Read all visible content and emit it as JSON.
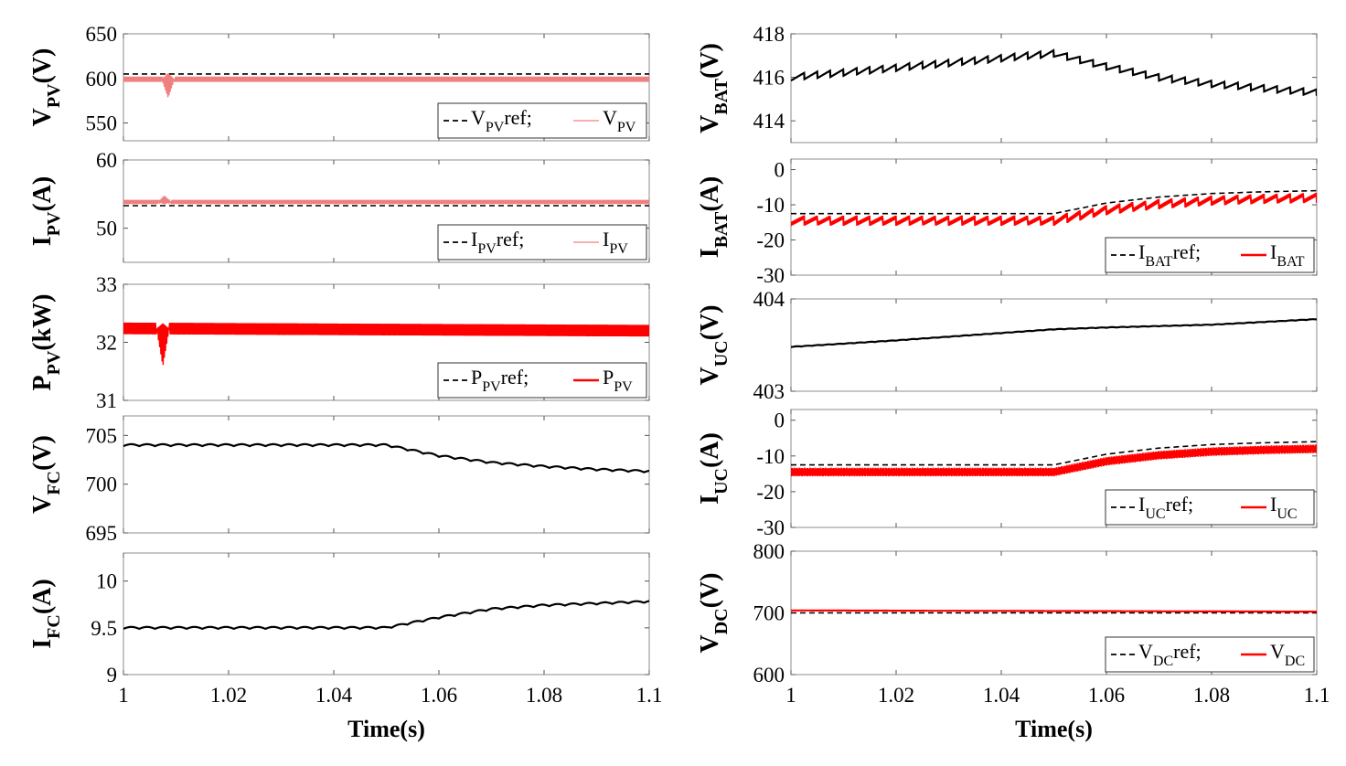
{
  "colors": {
    "ref": "#000000",
    "measured": "#ff0000",
    "measured_light": "#f08080",
    "single": "#000000"
  },
  "chart_data": [
    {
      "id": "vpv",
      "type": "line",
      "column": "left",
      "ylabel": {
        "main": "V",
        "sub": "PV",
        "unit": "(V)"
      },
      "ylim": [
        530,
        650
      ],
      "yticks": [
        550,
        600,
        650
      ],
      "xlim": [
        1,
        1.1
      ],
      "legend": {
        "ref_main": "V",
        "ref_sub": "PV",
        "ref_suffix": "ref;",
        "meas_main": "V",
        "meas_sub": "PV",
        "style": "light"
      },
      "series": [
        {
          "name": "V_PV ref",
          "style": "ref",
          "x": [
            1,
            1.1
          ],
          "y": [
            605,
            605
          ]
        },
        {
          "name": "V_PV",
          "style": "band",
          "x": [
            1,
            1.1
          ],
          "y": [
            599,
            599
          ],
          "band": 3,
          "transient": {
            "x": 1.0085,
            "y": 578,
            "y_up": 606
          }
        }
      ]
    },
    {
      "id": "ipv",
      "type": "line",
      "column": "left",
      "ylabel": {
        "main": "I",
        "sub": "PV",
        "unit": "(A)"
      },
      "ylim": [
        45,
        60
      ],
      "yticks": [
        50,
        60
      ],
      "xlim": [
        1,
        1.1
      ],
      "legend": {
        "ref_main": "I",
        "ref_sub": "PV",
        "ref_suffix": "ref;",
        "meas_main": "I",
        "meas_sub": "PV",
        "style": "light"
      },
      "series": [
        {
          "name": "I_PV ref",
          "style": "ref",
          "x": [
            1,
            1.1
          ],
          "y": [
            53.3,
            53.3
          ]
        },
        {
          "name": "I_PV",
          "style": "band",
          "x": [
            1,
            1.1
          ],
          "y": [
            53.85,
            53.85
          ],
          "band": 0.3,
          "transient": {
            "x": 1.0078,
            "y": 53.5,
            "y_up": 54.8
          }
        }
      ]
    },
    {
      "id": "ppv",
      "type": "line",
      "column": "left",
      "ylabel": {
        "main": "P",
        "sub": "PV",
        "unit": "(kW)"
      },
      "ylim": [
        31,
        33
      ],
      "yticks": [
        31,
        32,
        33
      ],
      "xlim": [
        1,
        1.1
      ],
      "legend": {
        "ref_main": "P",
        "ref_sub": "PV",
        "ref_suffix": "ref;",
        "meas_main": "P",
        "meas_sub": "PV",
        "style": "solid"
      },
      "series": [
        {
          "name": "P_PV ref",
          "style": "ref",
          "x": [
            1,
            1.1
          ],
          "y": [
            32.22,
            32.22
          ]
        },
        {
          "name": "P_PV",
          "style": "band",
          "x": [
            1,
            1.1
          ],
          "y": [
            32.24,
            32.2
          ],
          "band": 0.1,
          "transient": {
            "x": 1.0075,
            "y": 31.58,
            "y_up": 32.33
          }
        }
      ]
    },
    {
      "id": "vfc",
      "type": "line",
      "column": "left",
      "ylabel": {
        "main": "V",
        "sub": "FC",
        "unit": "(V)"
      },
      "ylim": [
        695,
        707
      ],
      "yticks": [
        695,
        700,
        705
      ],
      "xlim": [
        1,
        1.1
      ],
      "series": [
        {
          "name": "V_FC",
          "style": "single",
          "x": [
            1,
            1.05,
            1.06,
            1.07,
            1.08,
            1.09,
            1.1
          ],
          "y": [
            704,
            704,
            702.9,
            702.2,
            701.8,
            701.5,
            701.3
          ],
          "ripple": 0.2,
          "period": 0.003
        }
      ]
    },
    {
      "id": "ifc",
      "type": "line",
      "column": "left",
      "ylabel": {
        "main": "I",
        "sub": "FC",
        "unit": "(A)"
      },
      "ylim": [
        9,
        10.3
      ],
      "yticks": [
        9,
        9.5,
        10
      ],
      "xlim": [
        1,
        1.1
      ],
      "xticks": [
        "1",
        "1.02",
        "1.04",
        "1.06",
        "1.08",
        "1.1"
      ],
      "xlabel": "Time(s)",
      "series": [
        {
          "name": "I_FC",
          "style": "single",
          "x": [
            1,
            1.05,
            1.06,
            1.07,
            1.08,
            1.09,
            1.1
          ],
          "y": [
            9.5,
            9.5,
            9.61,
            9.7,
            9.74,
            9.76,
            9.78
          ],
          "ripple": 0.02,
          "period": 0.003
        }
      ]
    },
    {
      "id": "vbat",
      "type": "line",
      "column": "right",
      "ylabel": {
        "main": "V",
        "sub": "BAT",
        "unit": "(V)"
      },
      "ylim": [
        413,
        418
      ],
      "yticks": [
        414,
        416,
        418
      ],
      "xlim": [
        1,
        1.1
      ],
      "series": [
        {
          "name": "V_BAT",
          "style": "sawtooth",
          "x": [
            1,
            1.05,
            1.06,
            1.07,
            1.08,
            1.09,
            1.1
          ],
          "y": [
            416,
            417.1,
            416.5,
            416.0,
            415.7,
            415.5,
            415.3
          ],
          "ripple": 0.25,
          "period": 0.0025
        }
      ]
    },
    {
      "id": "ibat",
      "type": "line",
      "column": "right",
      "ylabel": {
        "main": "I",
        "sub": "BAT",
        "unit": "(A)"
      },
      "ylim": [
        -30,
        3
      ],
      "yticks": [
        -30,
        -20,
        -10,
        0
      ],
      "xlim": [
        1,
        1.1
      ],
      "legend": {
        "ref_main": "I",
        "ref_sub": "BAT",
        "ref_suffix": "ref;",
        "meas_main": "I",
        "meas_sub": "BAT",
        "style": "solid"
      },
      "series": [
        {
          "name": "I_BAT ref",
          "style": "ref",
          "x": [
            1,
            1.05,
            1.06,
            1.07,
            1.08,
            1.09,
            1.1
          ],
          "y": [
            -12.5,
            -12.5,
            -9.5,
            -7.8,
            -6.8,
            -6.3,
            -6
          ]
        },
        {
          "name": "I_BAT",
          "style": "sawband",
          "x": [
            1,
            1.05,
            1.06,
            1.07,
            1.08,
            1.09,
            1.1
          ],
          "y": [
            -14.5,
            -14.5,
            -11.5,
            -9.8,
            -8.8,
            -8.3,
            -8
          ],
          "ripple": 1.2,
          "period": 0.0025
        }
      ]
    },
    {
      "id": "vuc",
      "type": "line",
      "column": "right",
      "ylabel": {
        "main": "V",
        "sub": "UC",
        "unit": "(V)"
      },
      "ylim": [
        403,
        404
      ],
      "yticks": [
        403,
        404
      ],
      "xlim": [
        1,
        1.1
      ],
      "series": [
        {
          "name": "V_UC",
          "style": "single",
          "x": [
            1,
            1.02,
            1.04,
            1.05,
            1.06,
            1.08,
            1.1
          ],
          "y": [
            403.48,
            403.55,
            403.63,
            403.67,
            403.69,
            403.72,
            403.78
          ],
          "ripple": 0.005,
          "period": 0.002
        }
      ]
    },
    {
      "id": "iuc",
      "type": "line",
      "column": "right",
      "ylabel": {
        "main": "I",
        "sub": "UC",
        "unit": "(A)"
      },
      "ylim": [
        -30,
        3
      ],
      "yticks": [
        -30,
        -20,
        -10,
        0
      ],
      "xlim": [
        1,
        1.1
      ],
      "legend": {
        "ref_main": "I",
        "ref_sub": "UC",
        "ref_suffix": "ref;",
        "meas_main": "I",
        "meas_sub": "UC",
        "style": "solid"
      },
      "series": [
        {
          "name": "I_UC ref",
          "style": "ref",
          "x": [
            1,
            1.05,
            1.06,
            1.07,
            1.08,
            1.09,
            1.1
          ],
          "y": [
            -12.5,
            -12.5,
            -9.5,
            -7.8,
            -6.8,
            -6.3,
            -6
          ]
        },
        {
          "name": "I_UC",
          "style": "noiseband",
          "x": [
            1,
            1.05,
            1.06,
            1.07,
            1.08,
            1.09,
            1.1
          ],
          "y": [
            -14.5,
            -14.5,
            -11.5,
            -9.8,
            -8.8,
            -8.3,
            -8
          ],
          "ripple": 1.2,
          "period": 0.0009
        }
      ]
    },
    {
      "id": "vdc",
      "type": "line",
      "column": "right",
      "ylabel": {
        "main": "V",
        "sub": "DC",
        "unit": "(V)"
      },
      "ylim": [
        600,
        800
      ],
      "yticks": [
        600,
        700,
        800
      ],
      "xlim": [
        1,
        1.1
      ],
      "xticks": [
        "1",
        "1.02",
        "1.04",
        "1.06",
        "1.08",
        "1.1"
      ],
      "xlabel": "Time(s)",
      "legend": {
        "ref_main": "V",
        "ref_sub": "DC",
        "ref_suffix": "ref;",
        "meas_main": "V",
        "meas_sub": "DC",
        "style": "solid"
      },
      "series": [
        {
          "name": "V_DC ref",
          "style": "ref",
          "x": [
            1,
            1.1
          ],
          "y": [
            700,
            700
          ]
        },
        {
          "name": "V_DC",
          "style": "single_red",
          "x": [
            1,
            1.05,
            1.1
          ],
          "y": [
            704,
            703,
            702
          ]
        }
      ]
    }
  ]
}
